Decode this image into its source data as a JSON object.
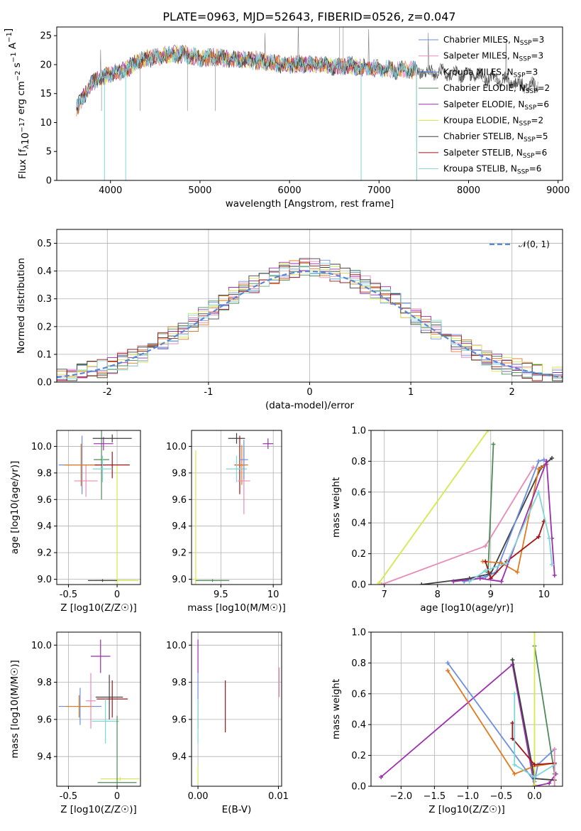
{
  "figure_title": "PLATE=0963, MJD=52643, FIBERID=0526, z=0.047",
  "colors": {
    "chabrier_miles": "#6a8fe0",
    "salpeter_miles": "#e88ab8",
    "kroupa_miles": "#3a6fd8",
    "chabrier_elodie": "#4e8a5a",
    "salpeter_elodie": "#9b2fae",
    "kroupa_elodie": "#d6e84a",
    "chabrier_stelib": "#404040",
    "salpeter_stelib": "#a31515",
    "kroupa_stelib": "#7fd6d6",
    "orange": "#e07a20",
    "spectrum_grey": "#808080"
  },
  "chart_data": [
    {
      "id": "spectrum",
      "type": "line",
      "title": "PLATE=0963, MJD=52643, FIBERID=0526, z=0.047",
      "xlabel": "wavelength [Angstrom, rest frame]",
      "ylabel_main": "Flux [f",
      "ylabel_sub": "λ",
      "ylabel_rest": "10",
      "ylabel_exp": "−17",
      "ylabel_units": " erg cm",
      "ylabel_units2": "−2",
      "ylabel_units3": " s",
      "ylabel_units4": "−1",
      "ylabel_units5": " A",
      "ylabel_units6": "−1",
      "ylabel_close": "]",
      "xlim": [
        3400,
        9050
      ],
      "ylim": [
        0,
        26.5
      ],
      "xticks": [
        4000,
        5000,
        6000,
        7000,
        8000,
        9000
      ],
      "yticks": [
        0,
        5,
        10,
        15,
        20,
        25
      ],
      "legend_placement": "top-right",
      "legend": [
        {
          "name": "Chabrier MILES, N",
          "sub": "SSP",
          "tail": "=3",
          "color_key": "chabrier_miles"
        },
        {
          "name": "Salpeter MILES, N",
          "sub": "SSP",
          "tail": "=3",
          "color_key": "salpeter_miles"
        },
        {
          "name": "Kroupa MILES, N",
          "sub": "SSP",
          "tail": "=3",
          "color_key": "kroupa_miles"
        },
        {
          "name": "Chabrier ELODIE, N",
          "sub": "SSP",
          "tail": "=2",
          "color_key": "chabrier_elodie"
        },
        {
          "name": "Salpeter ELODIE, N",
          "sub": "SSP",
          "tail": "=6",
          "color_key": "salpeter_elodie"
        },
        {
          "name": "Kroupa ELODIE, N",
          "sub": "SSP",
          "tail": "=2",
          "color_key": "kroupa_elodie"
        },
        {
          "name": "Chabrier STELIB, N",
          "sub": "SSP",
          "tail": "=5",
          "color_key": "chabrier_stelib"
        },
        {
          "name": "Salpeter STELIB, N",
          "sub": "SSP",
          "tail": "=6",
          "color_key": "salpeter_stelib"
        },
        {
          "name": "Kroupa STELIB, N",
          "sub": "SSP",
          "tail": "=6",
          "color_key": "kroupa_stelib"
        }
      ],
      "spectrum_envelope": {
        "x": [
          3620,
          3700,
          3800,
          3900,
          4000,
          4100,
          4200,
          4300,
          4400,
          4500,
          4600,
          4700,
          4800,
          4900,
          5000,
          5100,
          5200,
          5300,
          5400,
          5500,
          5600,
          5700,
          5800,
          5900,
          6000,
          6100,
          6200,
          6300,
          6400,
          6500,
          6600,
          6700,
          6800,
          6900,
          7000,
          7100,
          7200,
          7300,
          7400,
          7500,
          7600,
          7700,
          7800,
          7900,
          8000,
          8100,
          8200,
          8300,
          8400,
          8500,
          8600,
          8700,
          8780
        ],
        "y": [
          12.5,
          14.5,
          17.0,
          17.8,
          18.5,
          18.8,
          19.5,
          20.5,
          21.0,
          21.3,
          21.5,
          21.8,
          21.8,
          21.5,
          21.0,
          21.3,
          21.2,
          21.0,
          21.0,
          20.8,
          20.8,
          20.5,
          20.3,
          20.0,
          20.0,
          20.2,
          20.0,
          20.0,
          20.0,
          19.5,
          19.8,
          19.8,
          19.5,
          19.5,
          19.3,
          19.3,
          19.0,
          19.2,
          19.0,
          18.8,
          18.8,
          18.6,
          18.5,
          18.3,
          18.2,
          18.0,
          17.8,
          17.5,
          17.3,
          17.0,
          16.5,
          16.3,
          16.5
        ]
      },
      "dips": [
        {
          "x": 3933,
          "y": 0
        },
        {
          "x": 4170,
          "y": 0
        },
        {
          "x": 6800,
          "y": 0
        },
        {
          "x": 7420,
          "y": 0
        }
      ]
    },
    {
      "id": "residual-histogram",
      "type": "bar",
      "xlabel": "(data-model)/error",
      "ylabel": "Normed distribution",
      "xlim": [
        -2.5,
        2.5
      ],
      "ylim": [
        0,
        0.55
      ],
      "xticks": [
        -2,
        -1,
        0,
        1,
        2
      ],
      "yticks": [
        0.0,
        0.1,
        0.2,
        0.3,
        0.4,
        0.5
      ],
      "legend_placement": "top-right",
      "legend_label": "𝒩(0, 1)",
      "reference_curve": "normal(0,1)"
    },
    {
      "id": "age-vs-metallicity",
      "type": "scatter",
      "xlabel": "Z [log10(Z/Z☉)]",
      "ylabel": "age  [log10(age/yr)]",
      "xlim": [
        -0.62,
        0.24
      ],
      "ylim": [
        8.96,
        10.12
      ],
      "xticks": [
        -0.5,
        0.0
      ],
      "yticks": [
        9.0,
        9.2,
        9.4,
        9.6,
        9.8,
        10.0
      ],
      "points": [
        {
          "x": -0.36,
          "y": 9.86,
          "ex": 0.24,
          "ey": 0.22,
          "color_key": "chabrier_miles"
        },
        {
          "x": -0.32,
          "y": 9.74,
          "ex": 0.12,
          "ey": 0.12,
          "color_key": "salpeter_miles"
        },
        {
          "x": -0.37,
          "y": 9.86,
          "ex": 0.18,
          "ey": 0.16,
          "color_key": "orange"
        },
        {
          "x": -0.16,
          "y": 9.9,
          "ex": 0.08,
          "ey": 0.3,
          "color_key": "chabrier_elodie"
        },
        {
          "x": -0.14,
          "y": 10.02,
          "ex": 0.1,
          "ey": 0.05,
          "color_key": "salpeter_elodie"
        },
        {
          "x": 0.0,
          "y": 8.99,
          "ex": 0.22,
          "ey": 0.86,
          "color_key": "kroupa_elodie"
        },
        {
          "x": -0.05,
          "y": 10.06,
          "ex": 0.2,
          "ey": 0.03,
          "color_key": "chabrier_stelib"
        },
        {
          "x": -0.05,
          "y": 9.86,
          "ex": 0.18,
          "ey": 0.1,
          "color_key": "salpeter_stelib"
        },
        {
          "x": -0.15,
          "y": 9.83,
          "ex": 0.1,
          "ey": 0.1,
          "color_key": "kroupa_stelib"
        },
        {
          "x": -0.15,
          "y": 8.99,
          "ex": 0.15,
          "ey": 0.01,
          "color_key": "chabrier_stelib"
        }
      ]
    },
    {
      "id": "age-vs-mass",
      "type": "scatter",
      "xlabel": "mass [log10(M/M☉)]",
      "xlim": [
        9.22,
        10.08
      ],
      "ylim": [
        8.96,
        10.12
      ],
      "xticks": [
        9.5,
        10.0
      ],
      "yticks": [
        9.0,
        9.2,
        9.4,
        9.6,
        9.8,
        10.0
      ],
      "points": [
        {
          "x": 9.26,
          "y": 9.0,
          "ex": 0.02,
          "ey": 0.97,
          "color_key": "kroupa_elodie"
        },
        {
          "x": 9.42,
          "y": 8.99,
          "ex": 0.16,
          "ey": 0.01,
          "color_key": "chabrier_elodie"
        },
        {
          "x": 9.65,
          "y": 10.06,
          "ex": 0.08,
          "ey": 0.04,
          "color_key": "chabrier_stelib"
        },
        {
          "x": 9.68,
          "y": 9.86,
          "ex": 0.05,
          "ey": 0.22,
          "color_key": "salpeter_stelib"
        },
        {
          "x": 9.7,
          "y": 9.86,
          "ex": 0.06,
          "ey": 0.15,
          "color_key": "orange"
        },
        {
          "x": 9.72,
          "y": 9.74,
          "ex": 0.06,
          "ey": 0.25,
          "color_key": "salpeter_miles"
        },
        {
          "x": 9.65,
          "y": 9.83,
          "ex": 0.1,
          "ey": 0.1,
          "color_key": "kroupa_stelib"
        },
        {
          "x": 9.95,
          "y": 10.02,
          "ex": 0.05,
          "ey": 0.04,
          "color_key": "salpeter_elodie"
        },
        {
          "x": 9.72,
          "y": 9.9,
          "ex": 0.04,
          "ey": 0.15,
          "color_key": "chabrier_miles"
        }
      ]
    },
    {
      "id": "massweight-vs-age",
      "type": "line",
      "xlabel": "age  [log10(age/yr)]",
      "ylabel": "mass weight",
      "xlim": [
        6.75,
        10.35
      ],
      "ylim": [
        0,
        1.0
      ],
      "xticks": [
        7,
        8,
        9,
        10
      ],
      "yticks": [
        0.0,
        0.2,
        0.4,
        0.6,
        0.8,
        1.0
      ],
      "series": [
        {
          "color_key": "kroupa_elodie",
          "x": [
            6.9,
            8.95
          ],
          "y": [
            0.01,
            1.0
          ]
        },
        {
          "color_key": "salpeter_miles",
          "x": [
            6.95,
            8.9,
            9.8
          ],
          "y": [
            0.0,
            0.25,
            0.76
          ]
        },
        {
          "color_key": "chabrier_elodie",
          "x": [
            8.95,
            9.05,
            8.95
          ],
          "y": [
            0.08,
            0.91,
            0.08
          ]
        },
        {
          "color_key": "chabrier_stelib",
          "x": [
            7.7,
            8.6,
            9.0,
            9.95,
            10.15
          ],
          "y": [
            0.0,
            0.04,
            0.07,
            0.76,
            0.82
          ]
        },
        {
          "color_key": "chabrier_miles",
          "x": [
            8.5,
            8.9,
            9.1,
            9.9,
            10.0
          ],
          "y": [
            0.02,
            0.05,
            0.08,
            0.8,
            0.81
          ]
        },
        {
          "color_key": "orange",
          "x": [
            8.85,
            9.2,
            9.5,
            9.9,
            10.05
          ],
          "y": [
            0.15,
            0.14,
            0.08,
            0.75,
            0.78
          ]
        },
        {
          "color_key": "salpeter_stelib",
          "x": [
            8.9,
            9.0,
            9.3,
            9.9,
            10.0
          ],
          "y": [
            0.15,
            0.04,
            0.15,
            0.31,
            0.41
          ]
        },
        {
          "color_key": "salpeter_elodie",
          "x": [
            8.3,
            8.8,
            9.2,
            10.05,
            10.15,
            10.2
          ],
          "y": [
            0.02,
            0.04,
            0.02,
            0.8,
            0.3,
            0.06
          ]
        },
        {
          "color_key": "kroupa_stelib",
          "x": [
            8.6,
            8.9,
            9.3,
            9.9,
            10.1,
            10.15
          ],
          "y": [
            0.02,
            0.09,
            0.14,
            0.6,
            0.3,
            0.13
          ]
        }
      ]
    },
    {
      "id": "mass-vs-metallicity",
      "type": "scatter",
      "xlabel": "Z [log10(Z/Z☉)]",
      "ylabel": "mass [log10(M/M☉)]",
      "xlim": [
        -0.62,
        0.24
      ],
      "ylim": [
        9.24,
        10.07
      ],
      "xticks": [
        -0.5,
        0.0
      ],
      "yticks": [
        9.4,
        9.6,
        9.8,
        10.0
      ],
      "points": [
        {
          "x": -0.38,
          "y": 9.67,
          "ex": 0.22,
          "ey": 0.1,
          "color_key": "chabrier_miles"
        },
        {
          "x": -0.39,
          "y": 9.67,
          "ex": 0.14,
          "ey": 0.06,
          "color_key": "orange"
        },
        {
          "x": -0.27,
          "y": 9.7,
          "ex": 0.05,
          "ey": 0.15,
          "color_key": "salpeter_miles"
        },
        {
          "x": -0.17,
          "y": 9.94,
          "ex": 0.1,
          "ey": 0.09,
          "color_key": "salpeter_elodie"
        },
        {
          "x": -0.05,
          "y": 9.71,
          "ex": 0.16,
          "ey": 0.1,
          "color_key": "salpeter_stelib"
        },
        {
          "x": -0.08,
          "y": 9.72,
          "ex": 0.14,
          "ey": 0.12,
          "color_key": "chabrier_stelib"
        },
        {
          "x": -0.12,
          "y": 9.59,
          "ex": 0.14,
          "ey": 0.12,
          "color_key": "kroupa_stelib"
        },
        {
          "x": 0.03,
          "y": 9.28,
          "ex": 0.2,
          "ey": 0.01,
          "color_key": "kroupa_elodie"
        },
        {
          "x": 0.0,
          "y": 9.26,
          "ex": 0.2,
          "ey": 0.36,
          "color_key": "chabrier_elodie"
        }
      ]
    },
    {
      "id": "mass-vs-ebv",
      "type": "scatter",
      "xlabel": "E(B-V)",
      "xlim": [
        -0.0008,
        0.0104
      ],
      "ylim": [
        9.24,
        10.07
      ],
      "xticks": [
        0.0,
        0.01
      ],
      "xticklabels": [
        "0.00",
        "0.01"
      ],
      "yticks": [
        9.4,
        9.6,
        9.8,
        10.0
      ],
      "points": [
        {
          "x": 0.0,
          "y": 9.94,
          "ey": 0.09,
          "color_key": "salpeter_elodie"
        },
        {
          "x": 0.0,
          "y": 9.7,
          "ey": 0.15,
          "color_key": "chabrier_miles"
        },
        {
          "x": 0.0,
          "y": 9.59,
          "ey": 0.12,
          "color_key": "kroupa_stelib"
        },
        {
          "x": 0.0,
          "y": 9.3,
          "ey": 0.05,
          "color_key": "kroupa_elodie"
        },
        {
          "x": 0.0034,
          "y": 9.67,
          "ey": 0.14,
          "color_key": "salpeter_stelib"
        },
        {
          "x": 0.0101,
          "y": 9.8,
          "ey": 0.08,
          "color_key": "salpeter_miles"
        }
      ]
    },
    {
      "id": "massweight-vs-metallicity",
      "type": "line",
      "xlabel": "Z [log10(Z/Z☉)]",
      "ylabel": "mass weight",
      "xlim": [
        -2.45,
        0.42
      ],
      "ylim": [
        0,
        1.0
      ],
      "xticks": [
        -2.0,
        -1.5,
        -1.0,
        -0.5,
        0.0
      ],
      "xticklabels": [
        "−2.0",
        "−1.5",
        "−1.0",
        "−0.5",
        "0.0"
      ],
      "yticks": [
        0.0,
        0.2,
        0.4,
        0.6,
        0.8,
        1.0
      ],
      "series": [
        {
          "color_key": "salpeter_elodie",
          "x": [
            -2.3,
            -0.33,
            0.0,
            0.22,
            0.32
          ],
          "y": [
            0.06,
            0.79,
            0.0,
            0.02,
            0.08
          ]
        },
        {
          "color_key": "chabrier_miles",
          "x": [
            -1.3,
            -0.0,
            0.05,
            0.3
          ],
          "y": [
            0.8,
            0.03,
            0.14,
            0.24
          ]
        },
        {
          "color_key": "orange",
          "x": [
            -1.3,
            -0.3,
            0.0,
            0.3
          ],
          "y": [
            0.75,
            0.08,
            0.13,
            0.15
          ]
        },
        {
          "color_key": "chabrier_stelib",
          "x": [
            -0.33,
            0.0,
            0.3
          ],
          "y": [
            0.82,
            0.05,
            0.04
          ]
        },
        {
          "color_key": "chabrier_elodie",
          "x": [
            0.0,
            0.3
          ],
          "y": [
            0.91,
            0.08
          ]
        },
        {
          "color_key": "kroupa_elodie",
          "x": [
            0.0,
            0.0
          ],
          "y": [
            1.0,
            0.01
          ]
        },
        {
          "color_key": "salpeter_stelib",
          "x": [
            -0.33,
            -0.33,
            0.0,
            0.3
          ],
          "y": [
            0.41,
            0.31,
            0.14,
            0.15
          ]
        },
        {
          "color_key": "kroupa_stelib",
          "x": [
            -0.3,
            -0.3,
            0.0,
            0.3
          ],
          "y": [
            0.6,
            0.14,
            0.06,
            0.14
          ]
        },
        {
          "color_key": "salpeter_miles",
          "x": [
            0.3,
            0.3
          ],
          "y": [
            0.24,
            0.0
          ]
        }
      ]
    }
  ]
}
